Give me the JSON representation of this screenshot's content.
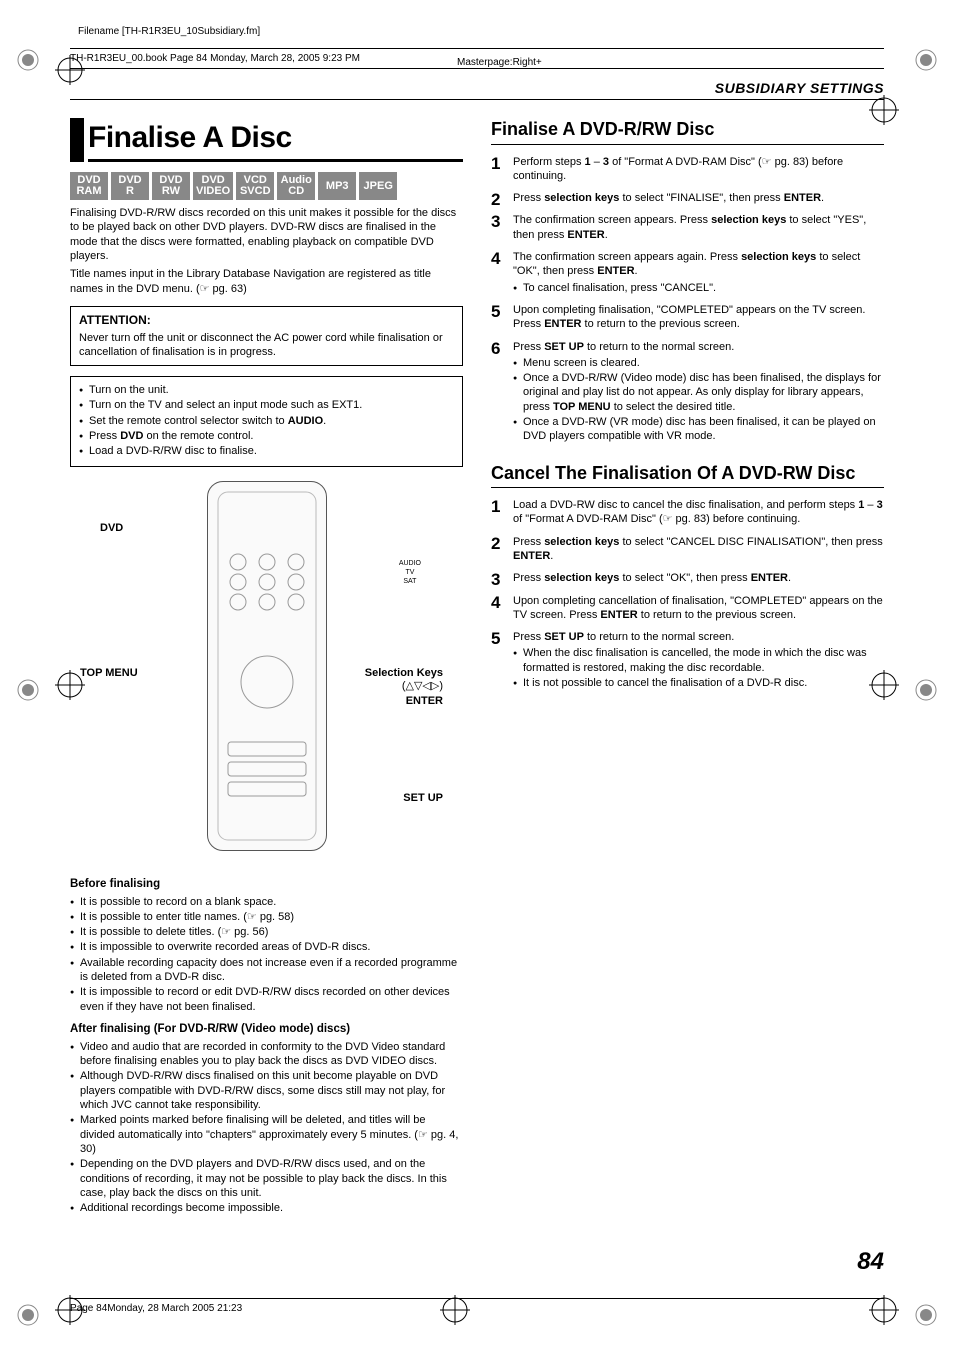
{
  "meta": {
    "filename": "Filename [TH-R1R3EU_10Subsidiary.fm]",
    "header_line": "TH-R1R3EU_00.book  Page 84  Monday, March 28, 2005  9:23 PM",
    "masterpage": "Masterpage:Right+",
    "section_header": "SUBSIDIARY SETTINGS",
    "page_number": "84",
    "footer": "Page 84Monday, 28 March 2005  21:23"
  },
  "left": {
    "title": "Finalise A Disc",
    "badges": [
      {
        "l1": "DVD",
        "l2": "RAM"
      },
      {
        "l1": "DVD",
        "l2": "R"
      },
      {
        "l1": "DVD",
        "l2": "RW"
      },
      {
        "l1": "DVD",
        "l2": "VIDEO"
      },
      {
        "l1": "VCD",
        "l2": "SVCD"
      },
      {
        "l1": "Audio",
        "l2": "CD"
      },
      {
        "l1": "MP3",
        "l2": ""
      },
      {
        "l1": "JPEG",
        "l2": ""
      }
    ],
    "intro1": "Finalising DVD-R/RW discs recorded on this unit makes it possible for the discs to be played back on other DVD players. DVD-RW discs are finalised in the mode that the discs were formatted, enabling playback on compatible DVD players.",
    "intro2": "Title names input in the Library Database Navigation are registered as title names in the DVD menu. (☞ pg. 63)",
    "attention_hd": "ATTENTION:",
    "attention_body": "Never turn off the unit or disconnect the AC power cord while finalisation or cancellation of finalisation is in progress.",
    "prep": {
      "i1": "Turn on the unit.",
      "i2": "Turn on the TV and select an input mode such as EXT1.",
      "i3_a": "Set the remote control selector switch to ",
      "i3_b": "AUDIO",
      "i3_c": ".",
      "i4_a": "Press ",
      "i4_b": "DVD",
      "i4_c": " on the remote control.",
      "i5": "Load a DVD-R/RW disc to finalise."
    },
    "remote_labels": {
      "dvd": "DVD",
      "topmenu": "TOP MENU",
      "selkeys": "Selection Keys",
      "selkeys_sub": "(△▽◁▷)",
      "enter": "ENTER",
      "setup": "SET UP",
      "audio": "AUDIO",
      "tv": "TV",
      "sat": "SAT"
    },
    "before_hd": "Before finalising",
    "before": {
      "b1": "It is possible to record on a blank space.",
      "b2": "It is possible to enter title names. (☞ pg. 58)",
      "b3": "It is possible to delete titles. (☞ pg. 56)",
      "b4": "It is impossible to overwrite recorded areas of DVD-R discs.",
      "b5": "Available recording capacity does not increase even if a recorded programme is deleted from a DVD-R disc.",
      "b6": "It is impossible to record or edit DVD-R/RW discs recorded on other devices even if they have not been finalised."
    },
    "after_hd": "After finalising (For DVD-R/RW (Video mode) discs)",
    "after": {
      "a1": "Video and audio that are recorded in conformity to the DVD Video standard before finalising enables you to play back the discs as DVD VIDEO discs.",
      "a2": "Although DVD-R/RW discs finalised on this unit become playable on DVD players compatible with DVD-R/RW discs, some discs still may not play, for which JVC cannot take responsibility.",
      "a3": "Marked points marked before finalising will be deleted, and titles will be divided automatically into \"chapters\" approximately every 5 minutes. (☞ pg. 4, 30)",
      "a4": "Depending on the DVD players and DVD-R/RW discs used, and on the conditions of recording, it may not be possible to play back the discs. In this case, play back the discs on this unit.",
      "a5": "Additional recordings become impossible."
    }
  },
  "right": {
    "sec1_title": "Finalise A DVD-R/RW Disc",
    "s1": {
      "st1_a": "Perform steps ",
      "st1_b": "1",
      "st1_c": " – ",
      "st1_d": "3",
      "st1_e": " of \"Format A DVD-RAM Disc\" (☞ pg. 83) before continuing.",
      "st2_a": "Press ",
      "st2_b": "selection keys",
      "st2_c": " to select \"FINALISE\", then press ",
      "st2_d": "ENTER",
      "st2_e": ".",
      "st3_a": "The confirmation screen appears. Press ",
      "st3_b": "selection keys",
      "st3_c": " to select \"YES\", then press ",
      "st3_d": "ENTER",
      "st3_e": ".",
      "st4_a": "The confirmation screen appears again. Press ",
      "st4_b": "selection keys",
      "st4_c": " to select \"OK\", then press ",
      "st4_d": "ENTER",
      "st4_e": ".",
      "st4_note": "To cancel finalisation, press \"CANCEL\".",
      "st5_a": "Upon completing finalisation, \"COMPLETED\" appears on the TV screen. Press ",
      "st5_b": "ENTER",
      "st5_c": " to return to the previous screen.",
      "st6_a": "Press ",
      "st6_b": "SET UP",
      "st6_c": " to return to the normal screen.",
      "st6_n1": "Menu screen is cleared.",
      "st6_n2_a": "Once a DVD-R/RW (Video mode) disc has been finalised, the displays for original and play list do not appear. As only display for library appears, press ",
      "st6_n2_b": "TOP MENU",
      "st6_n2_c": " to select the desired title.",
      "st6_n3": "Once a DVD-RW (VR mode) disc has been finalised, it can be played on DVD players compatible with VR mode."
    },
    "sec2_title": "Cancel The Finalisation Of A DVD-RW Disc",
    "s2": {
      "st1_a": "Load a DVD-RW disc to cancel the disc finalisation, and perform steps ",
      "st1_b": "1",
      "st1_c": " – ",
      "st1_d": "3",
      "st1_e": " of \"Format A DVD-RAM Disc\" (☞ pg. 83) before continuing.",
      "st2_a": "Press ",
      "st2_b": "selection keys",
      "st2_c": " to select \"CANCEL DISC FINALISATION\", then press ",
      "st2_d": "ENTER",
      "st2_e": ".",
      "st3_a": "Press ",
      "st3_b": "selection keys",
      "st3_c": " to select \"OK\", then press ",
      "st3_d": "ENTER",
      "st3_e": ".",
      "st4_a": "Upon completing cancellation of finalisation, \"COMPLETED\" appears on the TV screen. Press ",
      "st4_b": "ENTER",
      "st4_c": " to return to the previous screen.",
      "st5_a": "Press ",
      "st5_b": "SET UP",
      "st5_c": " to return to the normal screen.",
      "st5_n1": "When the disc finalisation is cancelled, the mode in which the disc was formatted is restored, making the disc recordable.",
      "st5_n2": "It is not possible to cancel the finalisation of a DVD-R disc."
    }
  },
  "colors": {
    "badge_bg": "#888888",
    "text": "#000000"
  }
}
